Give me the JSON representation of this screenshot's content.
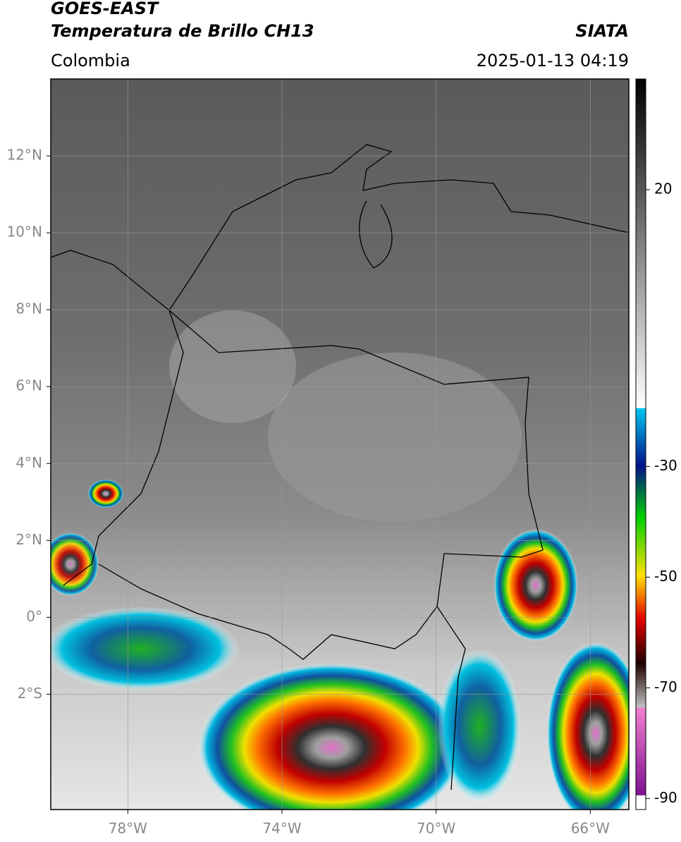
{
  "header": {
    "title": "GOES-EAST",
    "subtitle": "Temperatura de Brillo CH13",
    "source": "SIATA",
    "region": "Colombia",
    "datetime": "2025-01-13 04:19"
  },
  "map": {
    "xlim": [
      -80,
      -65
    ],
    "ylim": [
      -5,
      14
    ],
    "xticks": [
      {
        "value": -78,
        "label": "78°W"
      },
      {
        "value": -74,
        "label": "74°W"
      },
      {
        "value": -70,
        "label": "70°W"
      },
      {
        "value": -66,
        "label": "66°W"
      }
    ],
    "yticks": [
      {
        "value": 12,
        "label": "12°N"
      },
      {
        "value": 10,
        "label": "10°N"
      },
      {
        "value": 8,
        "label": "8°N"
      },
      {
        "value": 6,
        "label": "6°N"
      },
      {
        "value": 4,
        "label": "4°N"
      },
      {
        "value": 2,
        "label": "2°N"
      },
      {
        "value": 0,
        "label": "0°"
      },
      {
        "value": -2,
        "label": "2°S"
      }
    ],
    "grid": true
  },
  "colorbar": {
    "lim": [
      -92,
      40
    ],
    "ticks": [
      20,
      -30,
      -50,
      -70,
      -90
    ]
  }
}
